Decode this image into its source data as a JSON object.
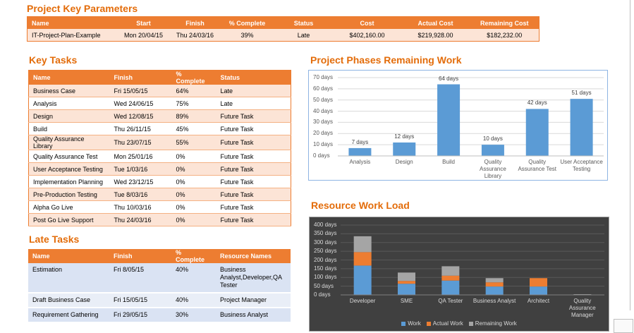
{
  "key_parameters": {
    "title": "Project Key Parameters",
    "headers": [
      "Name",
      "Start",
      "Finish",
      "% Complete",
      "Status",
      "Cost",
      "Actual Cost",
      "Remaining Cost"
    ],
    "rows": [
      [
        "IT-Project-Plan-Example",
        "Mon 20/04/15",
        "Thu 24/03/16",
        "39%",
        "Late",
        "$402,160.00",
        "$219,928.00",
        "$182,232.00"
      ]
    ]
  },
  "key_tasks": {
    "title": "Key Tasks",
    "headers": [
      "Name",
      "Finish",
      "% Complete",
      "Status"
    ],
    "rows": [
      [
        "Business Case",
        "Fri 15/05/15",
        "64%",
        "Late"
      ],
      [
        "Analysis",
        "Wed 24/06/15",
        "75%",
        "Late"
      ],
      [
        "Design",
        "Wed 12/08/15",
        "89%",
        "Future Task"
      ],
      [
        "Build",
        "Thu 26/11/15",
        "45%",
        "Future Task"
      ],
      [
        "Quality Assurance Library",
        "Thu 23/07/15",
        "55%",
        "Future Task"
      ],
      [
        "Quality Assurance Test",
        "Mon 25/01/16",
        "0%",
        "Future Task"
      ],
      [
        "User Acceptance Testing",
        "Tue 1/03/16",
        "0%",
        "Future Task"
      ],
      [
        "Implementation Planning",
        "Wed 23/12/15",
        "0%",
        "Future Task"
      ],
      [
        "Pre-Production Testing",
        "Tue 8/03/16",
        "0%",
        "Future Task"
      ],
      [
        "Alpha Go Live",
        "Thu 10/03/16",
        "0%",
        "Future Task"
      ],
      [
        "Post Go Live Support",
        "Thu 24/03/16",
        "0%",
        "Future Task"
      ]
    ]
  },
  "late_tasks": {
    "title": "Late Tasks",
    "headers": [
      "Name",
      "Finish",
      "% Complete",
      "Resource Names"
    ],
    "rows": [
      [
        "Estimation",
        "Fri 8/05/15",
        "40%",
        "Business Analyst,Developer,QA Tester"
      ],
      [
        "Draft Business Case",
        "Fri 15/05/15",
        "40%",
        "Project Manager"
      ],
      [
        "Requirement Gathering",
        "Fri 29/05/15",
        "30%",
        "Business Analyst"
      ]
    ]
  },
  "chart_data": [
    {
      "type": "bar",
      "title": "Project Phases Remaining Work",
      "categories": [
        "Analysis",
        "Design",
        "Build",
        "Quality Assurance Library",
        "Quality Assurance Test",
        "User Acceptance Testing"
      ],
      "values": [
        7,
        12,
        64,
        10,
        42,
        51
      ],
      "value_labels": [
        "7 days",
        "12 days",
        "64 days",
        "10 days",
        "42 days",
        "51 days"
      ],
      "color": "#5b9bd5",
      "ylim": [
        0,
        70
      ],
      "yticks": [
        {
          "value": 0,
          "label": "0 days"
        },
        {
          "value": 10,
          "label": "10 days"
        },
        {
          "value": 20,
          "label": "20 days"
        },
        {
          "value": 30,
          "label": "30 days"
        },
        {
          "value": 40,
          "label": "40 days"
        },
        {
          "value": 50,
          "label": "50 days"
        },
        {
          "value": 60,
          "label": "60 days"
        },
        {
          "value": 70,
          "label": "70 days"
        }
      ],
      "grid": true
    },
    {
      "type": "bar",
      "stacked": true,
      "title": "Resource Work Load",
      "categories": [
        "Developer",
        "SME",
        "QA Tester",
        "Business Analyst",
        "Architect",
        "Quality Assurance Manager"
      ],
      "series": [
        {
          "name": "Work",
          "color": "#5b9bd5",
          "values": [
            168,
            64,
            82,
            48,
            48,
            2
          ]
        },
        {
          "name": "Actual Work",
          "color": "#ed7d31",
          "values": [
            77,
            16,
            28,
            24,
            48,
            0
          ]
        },
        {
          "name": "Remaining Work",
          "color": "#a5a5a5",
          "values": [
            91,
            48,
            54,
            24,
            0,
            2
          ]
        }
      ],
      "ylim": [
        0,
        400
      ],
      "yticks": [
        {
          "value": 0,
          "label": "0 days"
        },
        {
          "value": 50,
          "label": "50 days"
        },
        {
          "value": 100,
          "label": "100 days"
        },
        {
          "value": 150,
          "label": "150 days"
        },
        {
          "value": 200,
          "label": "200 days"
        },
        {
          "value": 250,
          "label": "250 days"
        },
        {
          "value": 300,
          "label": "300 days"
        },
        {
          "value": 350,
          "label": "350 days"
        },
        {
          "value": 400,
          "label": "400 days"
        }
      ],
      "grid": true,
      "legend": "bottom",
      "background": "#404040"
    }
  ]
}
